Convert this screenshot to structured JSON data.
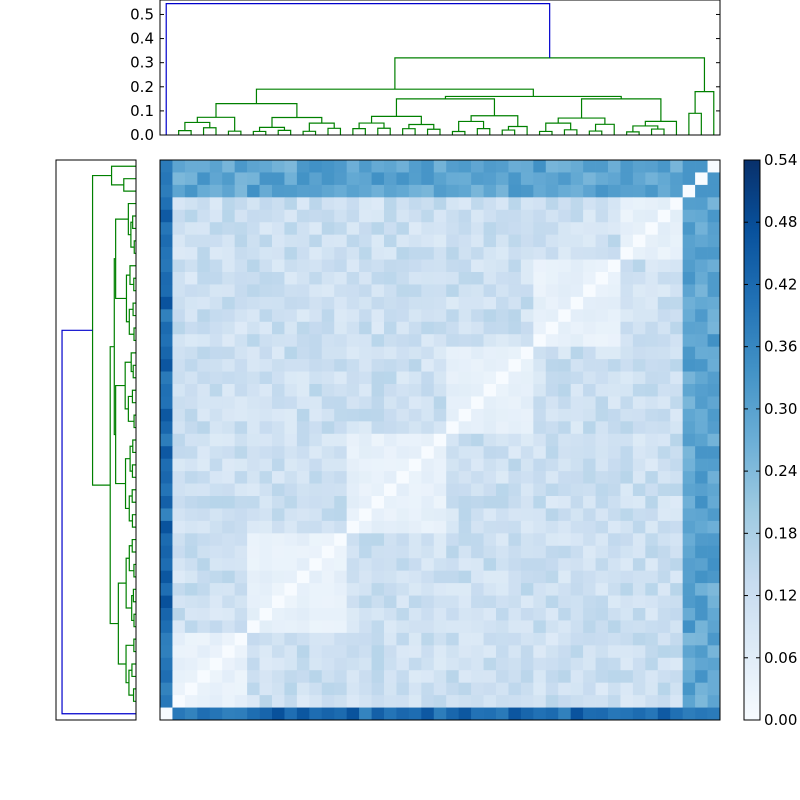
{
  "chart_data": {
    "type": "heatmap",
    "n": 45,
    "colormap": [
      "#f7fbff",
      "#deebf7",
      "#c6dbef",
      "#9ecae1",
      "#6baed6",
      "#4292c6",
      "#2171b5",
      "#08519c",
      "#08306b"
    ],
    "colorbar": {
      "min": 0.0,
      "max": 0.54,
      "tick_labels": [
        "0.00",
        "0.06",
        "0.12",
        "0.18",
        "0.24",
        "0.30",
        "0.36",
        "0.42",
        "0.48",
        "0.54"
      ]
    },
    "dendrogram_top": {
      "ylim": [
        0,
        0.56
      ],
      "tick_labels": [
        "0.0",
        "0.1",
        "0.2",
        "0.3",
        "0.4",
        "0.5"
      ]
    },
    "cluster_colors": {
      "outer": "#0000cc",
      "inner": "#008000"
    },
    "outlier_value": 0.42,
    "minor_outlier_value": 0.29,
    "minor_cross_value": 0.33,
    "bulk_value_range": [
      0.03,
      0.16
    ]
  }
}
